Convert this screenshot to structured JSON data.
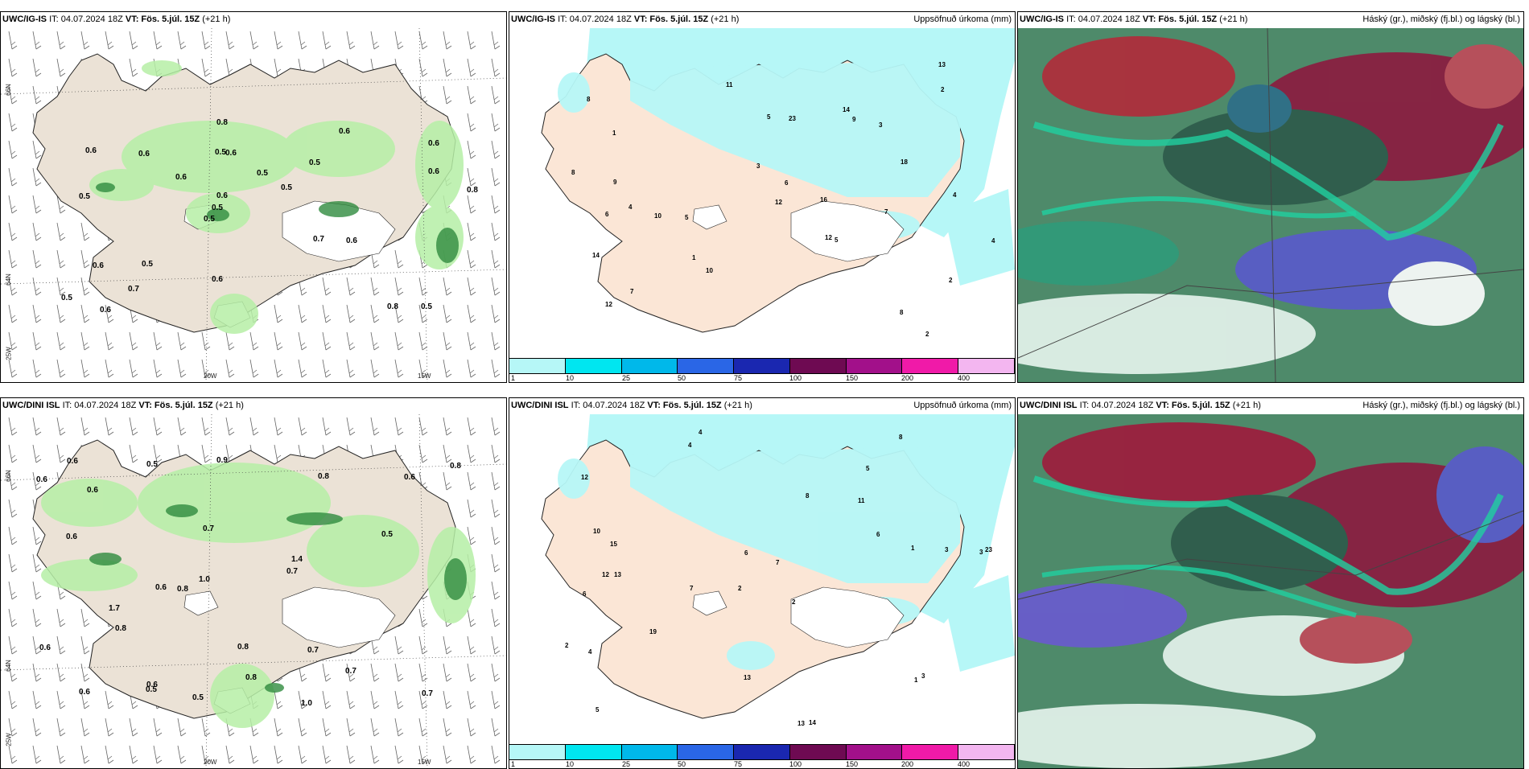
{
  "panels": [
    {
      "model": "UWC/IG-IS",
      "it_label": "IT: 04.07.2024 18Z",
      "vt_label": "VT: Fös. 5.júl. 15Z",
      "lead": "(+21 h)",
      "right": ""
    },
    {
      "model": "UWC/IG-IS",
      "it_label": "IT: 04.07.2024 18Z",
      "vt_label": "VT: Fös. 5.júl. 15Z",
      "lead": "(+21 h)",
      "right": "Uppsöfnuð úrkoma (mm)"
    },
    {
      "model": "UWC/IG-IS",
      "it_label": "IT: 04.07.2024 18Z",
      "vt_label": "VT: Fös. 5.júl. 15Z",
      "lead": "(+21 h)",
      "right": "Háský (gr.), miðský (fj.bl.) og lágský (bl.)"
    },
    {
      "model": "UWC/DINI ISL",
      "it_label": "IT: 04.07.2024 18Z",
      "vt_label": "VT: Fös. 5.júl. 15Z",
      "lead": "(+21 h)",
      "right": ""
    },
    {
      "model": "UWC/DINI ISL",
      "it_label": "IT: 04.07.2024 18Z",
      "vt_label": "VT: Fös. 5.júl. 15Z",
      "lead": "(+21 h)",
      "right": "Uppsöfnuð úrkoma (mm)"
    },
    {
      "model": "UWC/DINI ISL",
      "it_label": "IT: 04.07.2024 18Z",
      "vt_label": "VT: Fös. 5.júl. 15Z",
      "lead": "(+21 h)",
      "right": "Háský (gr.), miðský (fj.bl.) og lágský (bl.)"
    }
  ],
  "map_labels": {
    "lat66": "66N",
    "lat64": "64N",
    "lon25": "25W",
    "lon20": "20W",
    "lon15": "15W"
  },
  "colorbar": {
    "colors": [
      "#b6f7f7",
      "#00e6f0",
      "#00b8ea",
      "#2a66e6",
      "#1a27b0",
      "#6e0a52",
      "#a2108a",
      "#f01aa8",
      "#f3b6f0"
    ],
    "labels": [
      "1",
      "10",
      "25",
      "50",
      "75",
      "100",
      "150",
      "200",
      "400"
    ]
  },
  "tl_values": [
    "0.5",
    "0.5",
    "0.6",
    "0.5",
    "0.5",
    "0.6",
    "0.5",
    "0.5",
    "0.6",
    "0.6",
    "0.5",
    "0.7",
    "0.6",
    "0.5",
    "0.6",
    "0.6",
    "0.8",
    "0.8",
    "0.7",
    "0.6",
    "0.5",
    "0.6",
    "0.6",
    "0.6",
    "0.6",
    "0.5",
    "0.8"
  ],
  "bl_values": [
    "0.5",
    "1.0",
    "0.6",
    "0.7",
    "0.5",
    "0.6",
    "0.6",
    "0.7",
    "0.9",
    "0.7",
    "0.6",
    "0.8",
    "1.0",
    "0.8",
    "0.8",
    "0.7",
    "0.6",
    "0.5",
    "0.8",
    "0.6",
    "0.7",
    "0.8",
    "1.4",
    "0.6",
    "0.5",
    "1.7",
    "0.6",
    "0.8",
    "0.6"
  ],
  "tc_values": [
    "2",
    "4",
    "12",
    "8",
    "2",
    "1",
    "7",
    "5",
    "3",
    "5",
    "9",
    "8",
    "10",
    "11",
    "16",
    "14",
    "7",
    "6",
    "8",
    "12",
    "13",
    "23",
    "18",
    "4",
    "4",
    "9",
    "10",
    "12",
    "3",
    "2",
    "5",
    "6",
    "1",
    "14"
  ],
  "bc_values": [
    "4",
    "5",
    "3",
    "2",
    "2",
    "13",
    "12",
    "11",
    "6",
    "8",
    "7",
    "5",
    "4",
    "7",
    "13",
    "14",
    "13",
    "8",
    "6",
    "19",
    "15",
    "12",
    "23",
    "3",
    "2",
    "10",
    "6",
    "1",
    "3",
    "4",
    "1"
  ]
}
